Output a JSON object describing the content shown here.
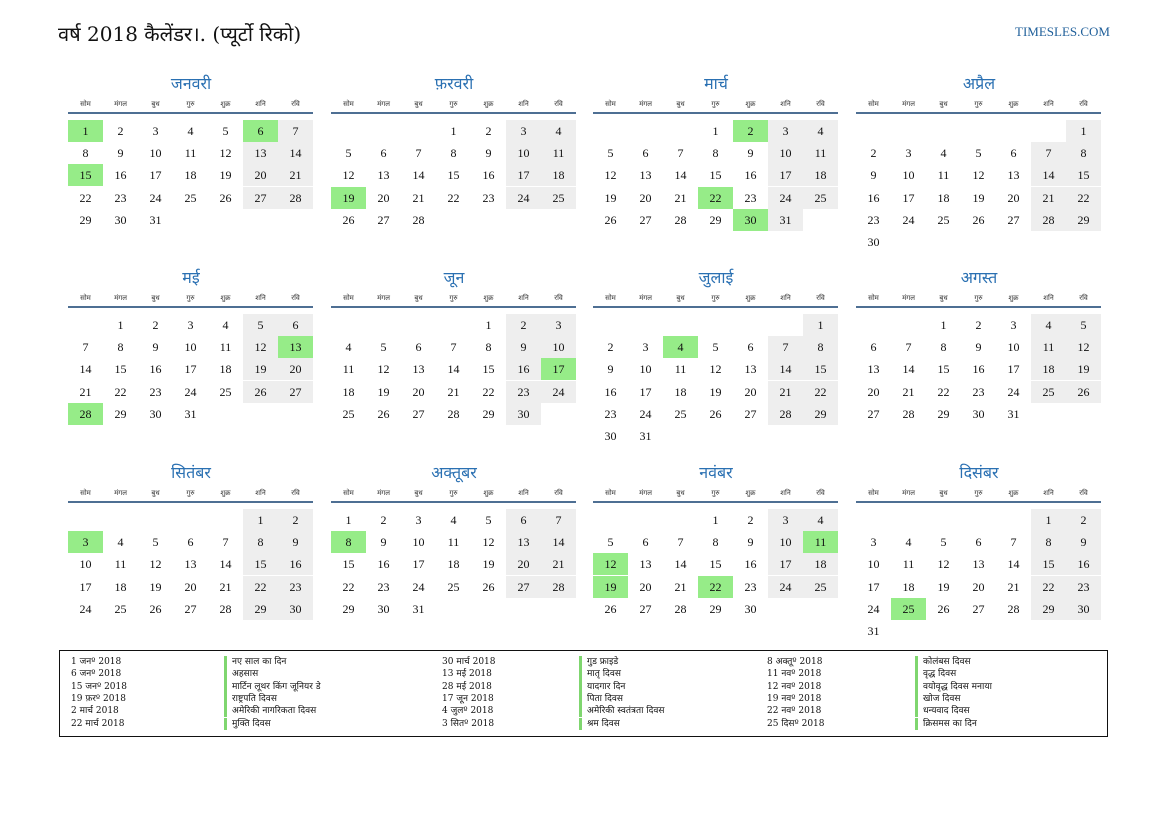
{
  "header": {
    "title": "वर्ष 2018 कैलेंडर।. (प्यूर्टो रिको)",
    "site": "TIMESLES.COM"
  },
  "weekdays": [
    "सोम",
    "मंगल",
    "बुध",
    "गुरु",
    "शुक्र",
    "शनि",
    "रवि"
  ],
  "colors": {
    "holiday": "#96ec88",
    "weekend": "#eeeeee",
    "month_name": "#2a70b2",
    "rule": "#4e6f93"
  },
  "months": [
    {
      "name": "जनवरी",
      "offset": 0,
      "days": 31,
      "holidays": [
        1,
        6,
        15
      ]
    },
    {
      "name": "फ़रवरी",
      "offset": 3,
      "days": 28,
      "holidays": [
        19
      ]
    },
    {
      "name": "मार्च",
      "offset": 3,
      "days": 31,
      "holidays": [
        2,
        22,
        30
      ]
    },
    {
      "name": "अप्रैल",
      "offset": 6,
      "days": 30,
      "holidays": []
    },
    {
      "name": "मई",
      "offset": 1,
      "days": 31,
      "holidays": [
        13,
        28
      ]
    },
    {
      "name": "जून",
      "offset": 4,
      "days": 30,
      "holidays": [
        17
      ]
    },
    {
      "name": "जुलाई",
      "offset": 6,
      "days": 31,
      "holidays": [
        4
      ]
    },
    {
      "name": "अगस्त",
      "offset": 2,
      "days": 31,
      "holidays": []
    },
    {
      "name": "सितंबर",
      "offset": 5,
      "days": 30,
      "holidays": [
        3
      ]
    },
    {
      "name": "अक्तूबर",
      "offset": 0,
      "days": 31,
      "holidays": [
        8
      ]
    },
    {
      "name": "नवंबर",
      "offset": 3,
      "days": 30,
      "holidays": [
        11,
        12,
        19,
        22
      ]
    },
    {
      "name": "दिसंबर",
      "offset": 5,
      "days": 31,
      "holidays": [
        25
      ]
    }
  ],
  "holiday_list": [
    [
      {
        "date": "1 जनº 2018",
        "name": "नए साल का दिन"
      },
      {
        "date": "6 जनº 2018",
        "name": "अहसास"
      },
      {
        "date": "15 जनº 2018",
        "name": "मार्टिन लूथर किंग जूनियर डे"
      },
      {
        "date": "19 फ़रº 2018",
        "name": "राष्ट्रपति दिवस"
      },
      {
        "date": "2 मार्च 2018",
        "name": "अमेरिकी नागरिकता दिवस"
      },
      {
        "date": "22 मार्च 2018",
        "name": "मुक्ति दिवस"
      }
    ],
    [
      {
        "date": "30 मार्च 2018",
        "name": "गुड फ्राइडे"
      },
      {
        "date": "13 मई 2018",
        "name": "मातृ दिवस"
      },
      {
        "date": "28 मई 2018",
        "name": "यादगार दिन"
      },
      {
        "date": "17 जून 2018",
        "name": "पिता दिवस"
      },
      {
        "date": "4 जुलº 2018",
        "name": "अमेरिकी स्वतंत्रता दिवस"
      },
      {
        "date": "3 सितº 2018",
        "name": "श्रम दिवस"
      }
    ],
    [
      {
        "date": "8 अक्तूº 2018",
        "name": "कोलंबस दिवस"
      },
      {
        "date": "11 नवº 2018",
        "name": "वृद्ध दिवस"
      },
      {
        "date": "12 नवº 2018",
        "name": "वयोवृद्ध दिवस मनाया"
      },
      {
        "date": "19 नवº 2018",
        "name": "खोज दिवस"
      },
      {
        "date": "22 नवº 2018",
        "name": "धन्यवाद दिवस"
      },
      {
        "date": "25 दिसº 2018",
        "name": "क्रिसमस का दिन"
      }
    ]
  ]
}
